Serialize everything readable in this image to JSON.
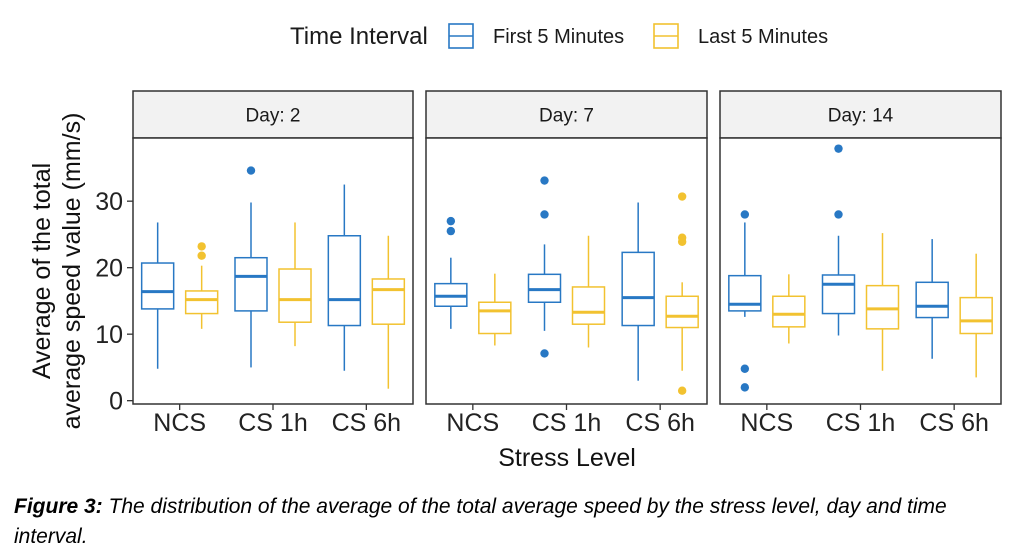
{
  "legend": {
    "title": "Time Interval",
    "position": "top",
    "entries": [
      {
        "label": "First 5 Minutes",
        "color": "#2878c4"
      },
      {
        "label": "Last 5 Minutes",
        "color": "#f2c230"
      }
    ]
  },
  "caption": {
    "label": "Figure 3:",
    "text": " The distribution of the average of the total average speed by the stress level, day and time interval."
  },
  "chart_data": {
    "type": "boxplot",
    "xlabel": "Stress Level",
    "ylabel_lines": [
      "Average of the total",
      "average speed value (mm/s)"
    ],
    "ylim": [
      -0.5,
      39.5
    ],
    "yticks": [
      0,
      10,
      20,
      30
    ],
    "grid": false,
    "categories": [
      "NCS",
      "CS 1h",
      "CS 6h"
    ],
    "series_names": [
      "First 5 Minutes",
      "Last 5 Minutes"
    ],
    "colors": [
      "#2878c4",
      "#f2c230"
    ],
    "facets": [
      {
        "label": "Day: 2",
        "groups": [
          {
            "category": "NCS",
            "boxes": [
              {
                "min": 4.8,
                "q1": 13.8,
                "median": 16.4,
                "q3": 20.7,
                "max": 26.8,
                "outliers": []
              },
              {
                "min": 10.8,
                "q1": 13.1,
                "median": 15.2,
                "q3": 16.5,
                "max": 20.3,
                "outliers": [
                  21.8,
                  23.2
                ]
              }
            ]
          },
          {
            "category": "CS 1h",
            "boxes": [
              {
                "min": 5.0,
                "q1": 13.5,
                "median": 18.7,
                "q3": 21.5,
                "max": 29.8,
                "outliers": [
                  34.6
                ]
              },
              {
                "min": 8.2,
                "q1": 11.8,
                "median": 15.2,
                "q3": 19.8,
                "max": 26.8,
                "outliers": []
              }
            ]
          },
          {
            "category": "CS 6h",
            "boxes": [
              {
                "min": 4.5,
                "q1": 11.3,
                "median": 15.2,
                "q3": 24.8,
                "max": 32.5,
                "outliers": []
              },
              {
                "min": 1.8,
                "q1": 11.5,
                "median": 16.7,
                "q3": 18.3,
                "max": 24.8,
                "outliers": []
              }
            ]
          }
        ]
      },
      {
        "label": "Day: 7",
        "groups": [
          {
            "category": "NCS",
            "boxes": [
              {
                "min": 10.8,
                "q1": 14.2,
                "median": 15.7,
                "q3": 17.6,
                "max": 21.5,
                "outliers": [
                  25.5,
                  27.0
                ]
              },
              {
                "min": 8.3,
                "q1": 10.1,
                "median": 13.5,
                "q3": 14.8,
                "max": 19.1,
                "outliers": []
              }
            ]
          },
          {
            "category": "CS 1h",
            "boxes": [
              {
                "min": 10.5,
                "q1": 14.8,
                "median": 16.7,
                "q3": 19.0,
                "max": 23.5,
                "outliers": [
                  7.1,
                  28.0,
                  33.1
                ]
              },
              {
                "min": 8.0,
                "q1": 11.5,
                "median": 13.3,
                "q3": 17.1,
                "max": 24.8,
                "outliers": []
              }
            ]
          },
          {
            "category": "CS 6h",
            "boxes": [
              {
                "min": 3.0,
                "q1": 11.3,
                "median": 15.5,
                "q3": 22.3,
                "max": 29.8,
                "outliers": []
              },
              {
                "min": 4.5,
                "q1": 11.0,
                "median": 12.7,
                "q3": 15.7,
                "max": 17.8,
                "outliers": [
                  1.5,
                  23.9,
                  24.5,
                  30.7
                ]
              }
            ]
          }
        ]
      },
      {
        "label": "Day: 14",
        "groups": [
          {
            "category": "NCS",
            "boxes": [
              {
                "min": 12.6,
                "q1": 13.5,
                "median": 14.5,
                "q3": 18.8,
                "max": 26.8,
                "outliers": [
                  2.0,
                  4.8,
                  28.0
                ]
              },
              {
                "min": 8.6,
                "q1": 11.1,
                "median": 13.0,
                "q3": 15.7,
                "max": 19.0,
                "outliers": []
              }
            ]
          },
          {
            "category": "CS 1h",
            "boxes": [
              {
                "min": 9.8,
                "q1": 13.1,
                "median": 17.5,
                "q3": 18.9,
                "max": 24.8,
                "outliers": [
                  28.0,
                  37.9
                ]
              },
              {
                "min": 4.5,
                "q1": 10.8,
                "median": 13.8,
                "q3": 17.3,
                "max": 25.2,
                "outliers": []
              }
            ]
          },
          {
            "category": "CS 6h",
            "boxes": [
              {
                "min": 6.3,
                "q1": 12.5,
                "median": 14.2,
                "q3": 17.8,
                "max": 24.3,
                "outliers": []
              },
              {
                "min": 3.5,
                "q1": 10.1,
                "median": 12.0,
                "q3": 15.5,
                "max": 22.1,
                "outliers": []
              }
            ]
          }
        ]
      }
    ]
  }
}
